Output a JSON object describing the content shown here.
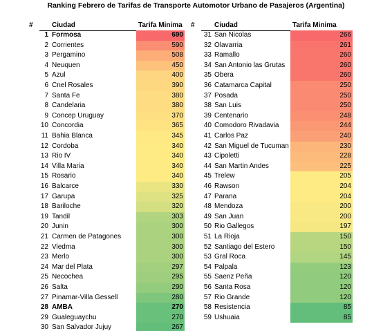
{
  "title": "Ranking Febrero de Tarifas de Transporte Automotor Urbano de Pasajeros (Argentina)",
  "groups": [
    {
      "headers": [
        "#",
        "Ciudad",
        "Tarifa Minima"
      ],
      "rows": [
        {
          "n": 1,
          "city": "Formosa",
          "tarifa": 690,
          "bold": true
        },
        {
          "n": 2,
          "city": "Corrientes",
          "tarifa": 590
        },
        {
          "n": 3,
          "city": "Pergamino",
          "tarifa": 508
        },
        {
          "n": 4,
          "city": "Neuquen",
          "tarifa": 450
        },
        {
          "n": 5,
          "city": "Azul",
          "tarifa": 400
        },
        {
          "n": 6,
          "city": "Cnel Rosales",
          "tarifa": 390
        },
        {
          "n": 7,
          "city": "Santa Fe",
          "tarifa": 380
        },
        {
          "n": 8,
          "city": "Candelaria",
          "tarifa": 380
        },
        {
          "n": 9,
          "city": "Concep Uruguay",
          "tarifa": 370
        },
        {
          "n": 10,
          "city": "Concordia",
          "tarifa": 365
        },
        {
          "n": 11,
          "city": "Bahia Blanca",
          "tarifa": 345
        },
        {
          "n": 12,
          "city": "Cordoba",
          "tarifa": 340
        },
        {
          "n": 13,
          "city": "Rio IV",
          "tarifa": 340
        },
        {
          "n": 14,
          "city": "Villa Maria",
          "tarifa": 340
        },
        {
          "n": 15,
          "city": "Rosario",
          "tarifa": 340
        },
        {
          "n": 16,
          "city": "Balcarce",
          "tarifa": 330
        },
        {
          "n": 17,
          "city": "Garupa",
          "tarifa": 325
        },
        {
          "n": 18,
          "city": "Bariloche",
          "tarifa": 320
        },
        {
          "n": 19,
          "city": "Tandil",
          "tarifa": 303
        },
        {
          "n": 20,
          "city": "Junin",
          "tarifa": 300
        },
        {
          "n": 21,
          "city": "Carmen de Patagones",
          "tarifa": 300
        },
        {
          "n": 22,
          "city": "Viedma",
          "tarifa": 300
        },
        {
          "n": 23,
          "city": "Merlo",
          "tarifa": 300
        },
        {
          "n": 24,
          "city": "Mar del Plata",
          "tarifa": 297
        },
        {
          "n": 25,
          "city": "Necochea",
          "tarifa": 295
        },
        {
          "n": 26,
          "city": "Salta",
          "tarifa": 290
        },
        {
          "n": 27,
          "city": "Pinamar-Villa Gessell",
          "tarifa": 280
        },
        {
          "n": 28,
          "city": "AMBA",
          "tarifa": 270,
          "bold": true
        },
        {
          "n": 29,
          "city": "Gualeguaychu",
          "tarifa": 270
        },
        {
          "n": 30,
          "city": "San Salvador Jujuy",
          "tarifa": 267
        }
      ]
    },
    {
      "headers": [
        "#",
        "Ciudad",
        "Tarifa Minima"
      ],
      "rows": [
        {
          "n": 31,
          "city": "San Nicolas",
          "tarifa": 266
        },
        {
          "n": 32,
          "city": "Olavarria",
          "tarifa": 261
        },
        {
          "n": 33,
          "city": "Ramallo",
          "tarifa": 260
        },
        {
          "n": 34,
          "city": "San Antonio las Grutas",
          "tarifa": 260
        },
        {
          "n": 35,
          "city": "Obera",
          "tarifa": 260
        },
        {
          "n": 36,
          "city": "Catamarca Capital",
          "tarifa": 250
        },
        {
          "n": 37,
          "city": "Posada",
          "tarifa": 250
        },
        {
          "n": 38,
          "city": "San Luis",
          "tarifa": 250
        },
        {
          "n": 39,
          "city": "Centenario",
          "tarifa": 248
        },
        {
          "n": 40,
          "city": "Comodoro Rivadavia",
          "tarifa": 244
        },
        {
          "n": 41,
          "city": "Carlos Paz",
          "tarifa": 240
        },
        {
          "n": 42,
          "city": "San Miguel de Tucuman",
          "tarifa": 230
        },
        {
          "n": 43,
          "city": "Cipoletti",
          "tarifa": 228
        },
        {
          "n": 44,
          "city": "San Martin Andes",
          "tarifa": 225
        },
        {
          "n": 45,
          "city": "Trelew",
          "tarifa": 205
        },
        {
          "n": 46,
          "city": "Rawson",
          "tarifa": 204
        },
        {
          "n": 47,
          "city": "Parana",
          "tarifa": 204
        },
        {
          "n": 48,
          "city": "Mendoza",
          "tarifa": 200
        },
        {
          "n": 49,
          "city": "San Juan",
          "tarifa": 200
        },
        {
          "n": 50,
          "city": "Rio Gallegos",
          "tarifa": 197
        },
        {
          "n": 51,
          "city": "La Rioja",
          "tarifa": 150
        },
        {
          "n": 52,
          "city": "Santiago del Estero",
          "tarifa": 150
        },
        {
          "n": 53,
          "city": "Gral Roca",
          "tarifa": 145
        },
        {
          "n": 54,
          "city": "Palpala",
          "tarifa": 123
        },
        {
          "n": 55,
          "city": "Saenz Peña",
          "tarifa": 120
        },
        {
          "n": 56,
          "city": "Santa Rosa",
          "tarifa": 120
        },
        {
          "n": 57,
          "city": "Rio Grande",
          "tarifa": 120
        },
        {
          "n": 58,
          "city": "Resistencia",
          "tarifa": 85
        },
        {
          "n": 59,
          "city": "Ushuaia",
          "tarifa": 85
        }
      ]
    }
  ]
}
